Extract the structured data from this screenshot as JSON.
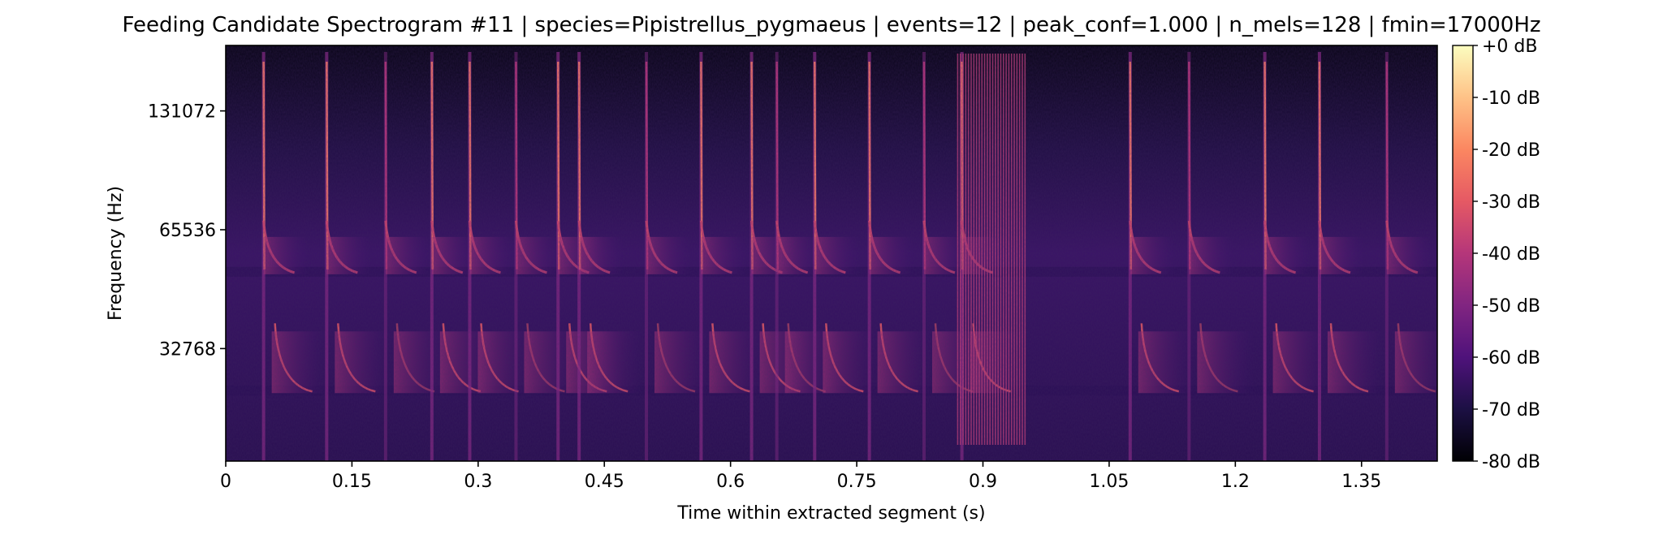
{
  "chart_data": {
    "type": "heatmap",
    "subtype": "mel-spectrogram",
    "title": "Feeding Candidate Spectrogram #11 | species=Pipistrellus_pygmaeus | events=12 | peak_conf=1.000 | n_mels=128 | fmin=17000Hz",
    "xlabel": "Time within extracted segment (s)",
    "ylabel": "Frequency (Hz)",
    "xlim": [
      0,
      1.44
    ],
    "x_ticks": [
      0,
      0.15,
      0.3,
      0.45,
      0.6,
      0.75,
      0.9,
      1.05,
      1.2,
      1.35
    ],
    "x_tick_labels": [
      "0",
      "0.15",
      "0.3",
      "0.45",
      "0.6",
      "0.75",
      "0.9",
      "1.05",
      "1.2",
      "1.35"
    ],
    "y_scale": "log2",
    "ylim": [
      17000,
      192000
    ],
    "y_ticks": [
      32768,
      65536,
      131072
    ],
    "y_tick_labels": [
      "32768",
      "65536",
      "131072"
    ],
    "colormap": "magma",
    "colorbar": {
      "range": [
        -80,
        0
      ],
      "ticks": [
        0,
        -10,
        -20,
        -30,
        -40,
        -50,
        -60,
        -70,
        -80
      ],
      "tick_labels": [
        "+0 dB",
        "-10 dB",
        "-20 dB",
        "-30 dB",
        "-40 dB",
        "-50 dB",
        "-60 dB",
        "-70 dB",
        "-80 dB"
      ]
    },
    "call_onsets_s": [
      0.045,
      0.12,
      0.19,
      0.245,
      0.29,
      0.345,
      0.395,
      0.42,
      0.5,
      0.565,
      0.625,
      0.655,
      0.7,
      0.765,
      0.83,
      0.875,
      1.075,
      1.145,
      1.235,
      1.3,
      1.38
    ],
    "feeding_buzz_s": [
      0.87,
      0.95
    ],
    "harmonic_bands_hz": [
      52000,
      26000
    ]
  }
}
